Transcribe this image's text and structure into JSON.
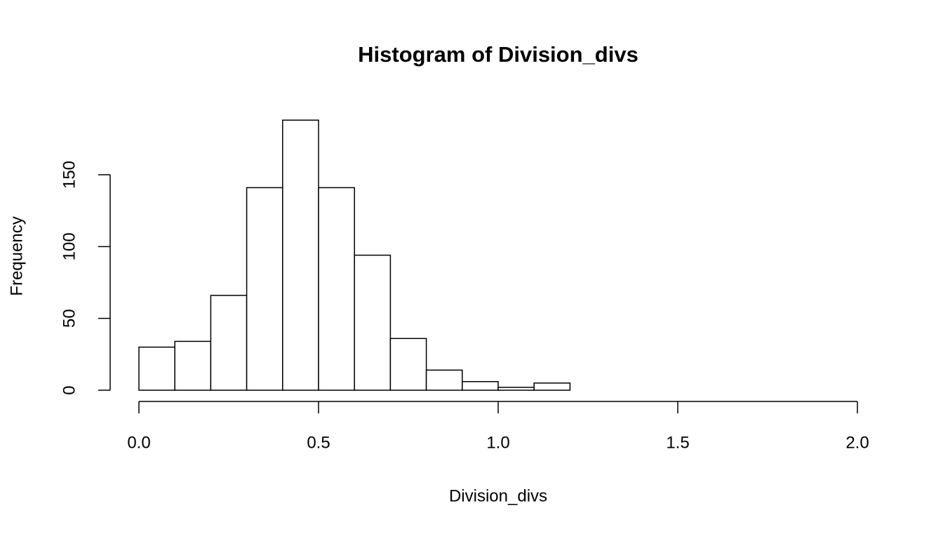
{
  "chart_data": {
    "type": "histogram",
    "title": "Histogram of Division_divs",
    "x_label": "Division_divs",
    "y_label": "Frequency",
    "bins": [
      0,
      0.1,
      0.2,
      0.3,
      0.4,
      0.5,
      0.6,
      0.7,
      0.8,
      0.9,
      1.0,
      1.1,
      1.2
    ],
    "counts": [
      30,
      34,
      66,
      141,
      188,
      141,
      94,
      36,
      14,
      6,
      2,
      5
    ],
    "color": "#ffffff",
    "xlim": [
      0,
      2
    ],
    "xticks": [
      {
        "value": 0,
        "label": "0.0"
      },
      0.5,
      {
        "value": 1,
        "label": "1.0"
      },
      1.5,
      {
        "value": 2,
        "label": "2.0"
      }
    ],
    "ylim": [
      0,
      188
    ],
    "yticks": [
      0,
      50,
      100,
      150
    ]
  }
}
